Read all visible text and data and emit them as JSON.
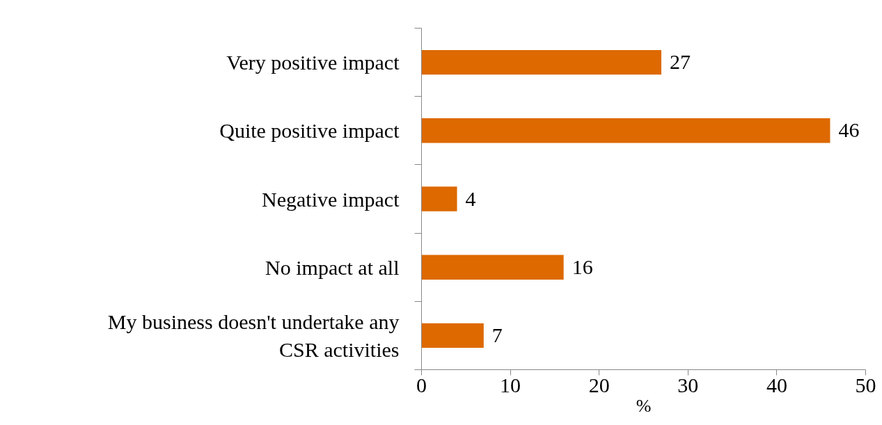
{
  "chart_data": {
    "type": "bar",
    "orientation": "horizontal",
    "categories": [
      "Very positive impact",
      "Quite positive impact",
      "Negative impact",
      "No impact at all",
      "My business doesn't undertake any CSR activities"
    ],
    "values": [
      27,
      46,
      4,
      16,
      7
    ],
    "color": "#dd6900",
    "xlim": [
      0,
      50
    ],
    "xticks": [
      0,
      10,
      20,
      30,
      40,
      50
    ],
    "xlabel": "%",
    "data_labels": true,
    "grid": false
  }
}
